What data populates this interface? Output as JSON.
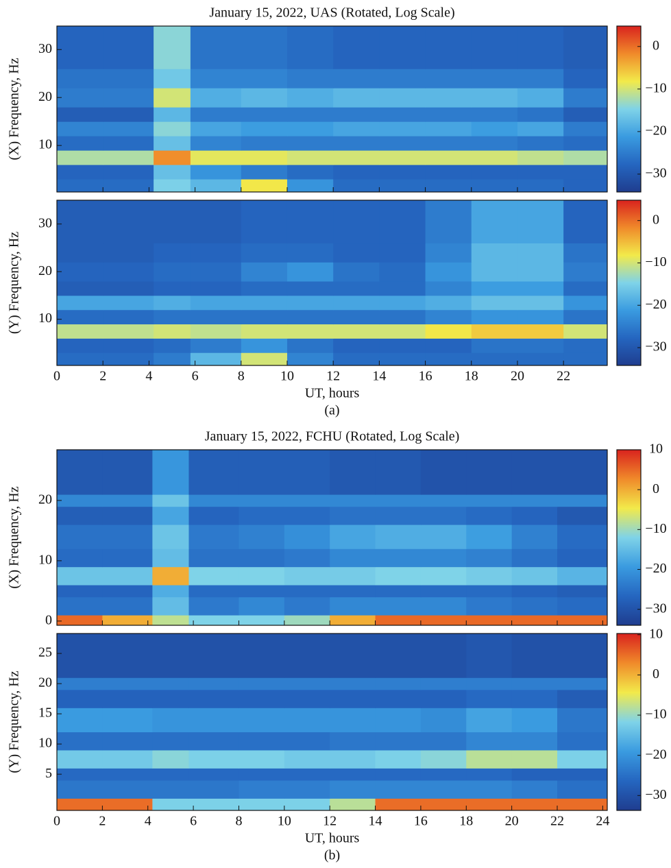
{
  "colormap": [
    "#1f3d8f",
    "#2566c0",
    "#3a9be0",
    "#7fd3e8",
    "#f2ea4a",
    "#f08a2a",
    "#d9231e"
  ],
  "chart_data": [
    {
      "type": "heatmap",
      "title": "January 15, 2022, UAS (Rotated, Log Scale)",
      "ylabel": "(X) Frequency, Hz",
      "xlim": [
        0,
        23.9
      ],
      "ylim": [
        0.3,
        34.9
      ],
      "yticks": [
        10,
        20,
        30
      ],
      "xbins": [
        0,
        2,
        4.2,
        5.8,
        8,
        10,
        12,
        14,
        16,
        18,
        20,
        22,
        23.9
      ],
      "ybins": [
        0.3,
        3,
        6,
        9,
        12,
        15,
        18,
        22,
        26,
        34.9
      ],
      "z": [
        [
          -27,
          -27,
          -15,
          -18,
          -8,
          -22,
          -27,
          -27,
          -27,
          -27,
          -27,
          -28
        ],
        [
          -28,
          -28,
          -17,
          -22,
          -25,
          -27,
          -28,
          -28,
          -28,
          -28,
          -28,
          -28
        ],
        [
          -12,
          -12,
          -2,
          -9,
          -9,
          -10,
          -10,
          -10,
          -10,
          -10,
          -11,
          -12
        ],
        [
          -27,
          -27,
          -17,
          -24,
          -25,
          -25,
          -25,
          -25,
          -25,
          -25,
          -26,
          -27
        ],
        [
          -24,
          -24,
          -14,
          -20,
          -21,
          -21,
          -20,
          -20,
          -20,
          -21,
          -20,
          -25
        ],
        [
          -29,
          -29,
          -18,
          -25,
          -25,
          -25,
          -25,
          -25,
          -25,
          -25,
          -26,
          -29
        ],
        [
          -25,
          -25,
          -10,
          -19,
          -18,
          -19,
          -18,
          -18,
          -18,
          -18,
          -19,
          -25
        ],
        [
          -26,
          -26,
          -16,
          -24,
          -24,
          -25,
          -25,
          -25,
          -25,
          -25,
          -25,
          -28
        ],
        [
          -28,
          -28,
          -14,
          -26,
          -26,
          -27,
          -28,
          -28,
          -28,
          -28,
          -28,
          -29
        ]
      ],
      "zlim": [
        -34.2,
        4.8
      ],
      "zticks": [
        0,
        {
          "value": -10,
          "label": "−10"
        },
        {
          "value": -20,
          "label": "−20"
        },
        {
          "value": -30,
          "label": "−30"
        }
      ]
    },
    {
      "type": "heatmap",
      "ylabel": "(Y) Frequency, Hz",
      "xlabel": "UT, hours",
      "caption": "(a)",
      "xlim": [
        0,
        23.9
      ],
      "ylim": [
        0.3,
        35
      ],
      "yticks": [
        10,
        20,
        30
      ],
      "xticks": [
        0,
        2,
        4,
        6,
        8,
        10,
        12,
        14,
        16,
        18,
        20,
        22
      ],
      "xbins": [
        0,
        2,
        4.2,
        5.8,
        8,
        10,
        12,
        14,
        16,
        18,
        20,
        22,
        23.9
      ],
      "ybins": [
        0.3,
        3,
        6,
        9,
        12,
        15,
        18,
        22,
        26,
        35
      ],
      "z": [
        [
          -27,
          -27,
          -25,
          -18,
          -10,
          -24,
          -27,
          -27,
          -27,
          -27,
          -27,
          -27
        ],
        [
          -28,
          -28,
          -27,
          -25,
          -22,
          -26,
          -28,
          -28,
          -28,
          -26,
          -26,
          -27
        ],
        [
          -11,
          -11,
          -10,
          -11,
          -10,
          -10,
          -10,
          -10,
          -8,
          -6,
          -6,
          -10
        ],
        [
          -27,
          -27,
          -26,
          -26,
          -26,
          -26,
          -26,
          -26,
          -24,
          -22,
          -22,
          -26
        ],
        [
          -20,
          -20,
          -19,
          -20,
          -20,
          -20,
          -20,
          -20,
          -19,
          -17,
          -17,
          -22
        ],
        [
          -29,
          -29,
          -28,
          -28,
          -27,
          -27,
          -27,
          -27,
          -24,
          -21,
          -21,
          -27
        ],
        [
          -28,
          -28,
          -27,
          -27,
          -24,
          -22,
          -26,
          -27,
          -22,
          -18,
          -18,
          -25
        ],
        [
          -29,
          -29,
          -28,
          -28,
          -27,
          -27,
          -28,
          -28,
          -24,
          -18,
          -18,
          -26
        ],
        [
          -29,
          -29,
          -29,
          -29,
          -28,
          -28,
          -28,
          -28,
          -25,
          -20,
          -20,
          -28
        ]
      ],
      "zlim": [
        -34.2,
        4.8
      ],
      "zticks": [
        0,
        {
          "value": -10,
          "label": "−10"
        },
        {
          "value": -20,
          "label": "−20"
        },
        {
          "value": -30,
          "label": "−30"
        }
      ]
    },
    {
      "type": "heatmap",
      "title": "January 15, 2022, FCHU (Rotated, Log Scale)",
      "ylabel": "(X) Frequency, Hz",
      "xlim": [
        0,
        24.2
      ],
      "ylim": [
        -0.7,
        28.4
      ],
      "yticks": [
        0,
        10,
        20
      ],
      "xbins": [
        0,
        2,
        4.2,
        5.8,
        8,
        10,
        12,
        14,
        16,
        18,
        20,
        22,
        24.2
      ],
      "ybins": [
        -0.7,
        1,
        4,
        6,
        9,
        12,
        16,
        19,
        21,
        28.4
      ],
      "z": [
        [
          5,
          0,
          -8,
          -12,
          -12,
          -10,
          0,
          5,
          5,
          5,
          5,
          5
        ],
        [
          -25,
          -25,
          -15,
          -24,
          -22,
          -24,
          -22,
          -22,
          -22,
          -24,
          -25,
          -26
        ],
        [
          -27,
          -27,
          -17,
          -26,
          -26,
          -26,
          -26,
          -26,
          -26,
          -26,
          -27,
          -28
        ],
        [
          -14,
          -14,
          0,
          -12,
          -12,
          -13,
          -13,
          -12,
          -12,
          -13,
          -14,
          -16
        ],
        [
          -26,
          -26,
          -15,
          -25,
          -25,
          -24,
          -22,
          -22,
          -22,
          -23,
          -25,
          -27
        ],
        [
          -25,
          -25,
          -14,
          -24,
          -23,
          -21,
          -18,
          -17,
          -17,
          -19,
          -23,
          -26
        ],
        [
          -28,
          -28,
          -18,
          -27,
          -26,
          -26,
          -25,
          -25,
          -25,
          -26,
          -27,
          -29
        ],
        [
          -22,
          -22,
          -14,
          -22,
          -22,
          -22,
          -22,
          -22,
          -22,
          -22,
          -22,
          -22
        ],
        [
          -29,
          -29,
          -20,
          -28,
          -28,
          -28,
          -29,
          -29,
          -30,
          -30,
          -30,
          -30
        ]
      ],
      "zlim": [
        -34,
        10
      ],
      "zticks": [
        10,
        0,
        {
          "value": -10,
          "label": "−10"
        },
        {
          "value": -20,
          "label": "−20"
        },
        {
          "value": -30,
          "label": "−30"
        }
      ]
    },
    {
      "type": "heatmap",
      "ylabel": "(Y) Frequency, Hz",
      "xlabel": "UT, hours",
      "caption": "(b)",
      "xlim": [
        0,
        24.2
      ],
      "ylim": [
        -1,
        28.3
      ],
      "yticks": [
        5,
        10,
        15,
        20,
        25
      ],
      "xticks": [
        0,
        2,
        4,
        6,
        8,
        10,
        12,
        14,
        16,
        18,
        20,
        22,
        24
      ],
      "xbins": [
        0,
        2,
        4.2,
        5.8,
        8,
        10,
        12,
        14,
        16,
        18,
        20,
        22,
        24.2
      ],
      "ybins": [
        -1,
        1,
        4,
        6,
        9,
        12,
        16,
        19,
        21,
        28.3
      ],
      "z": [
        [
          5,
          5,
          -12,
          -12,
          -12,
          -12,
          -8,
          5,
          5,
          5,
          5,
          5
        ],
        [
          -24,
          -24,
          -24,
          -24,
          -23,
          -23,
          -22,
          -22,
          -22,
          -22,
          -23,
          -25
        ],
        [
          -26,
          -26,
          -26,
          -26,
          -26,
          -26,
          -26,
          -26,
          -26,
          -26,
          -27,
          -27
        ],
        [
          -13,
          -13,
          -11,
          -12,
          -12,
          -13,
          -13,
          -12,
          -11,
          -8,
          -8,
          -12
        ],
        [
          -25,
          -25,
          -25,
          -25,
          -25,
          -25,
          -24,
          -24,
          -24,
          -22,
          -22,
          -25
        ],
        [
          -19,
          -19,
          -20,
          -20,
          -20,
          -20,
          -20,
          -20,
          -21,
          -18,
          -19,
          -24
        ],
        [
          -27,
          -27,
          -27,
          -27,
          -27,
          -27,
          -27,
          -27,
          -27,
          -26,
          -26,
          -28
        ],
        [
          -23,
          -23,
          -23,
          -23,
          -23,
          -23,
          -23,
          -23,
          -23,
          -23,
          -23,
          -23
        ],
        [
          -30,
          -30,
          -30,
          -30,
          -30,
          -30,
          -30,
          -30,
          -30,
          -29,
          -30,
          -30
        ]
      ],
      "zlim": [
        -33.7,
        10.3
      ],
      "zticks": [
        10,
        0,
        {
          "value": -10,
          "label": "−10"
        },
        {
          "value": -20,
          "label": "−20"
        },
        {
          "value": -30,
          "label": "−30"
        }
      ]
    }
  ]
}
